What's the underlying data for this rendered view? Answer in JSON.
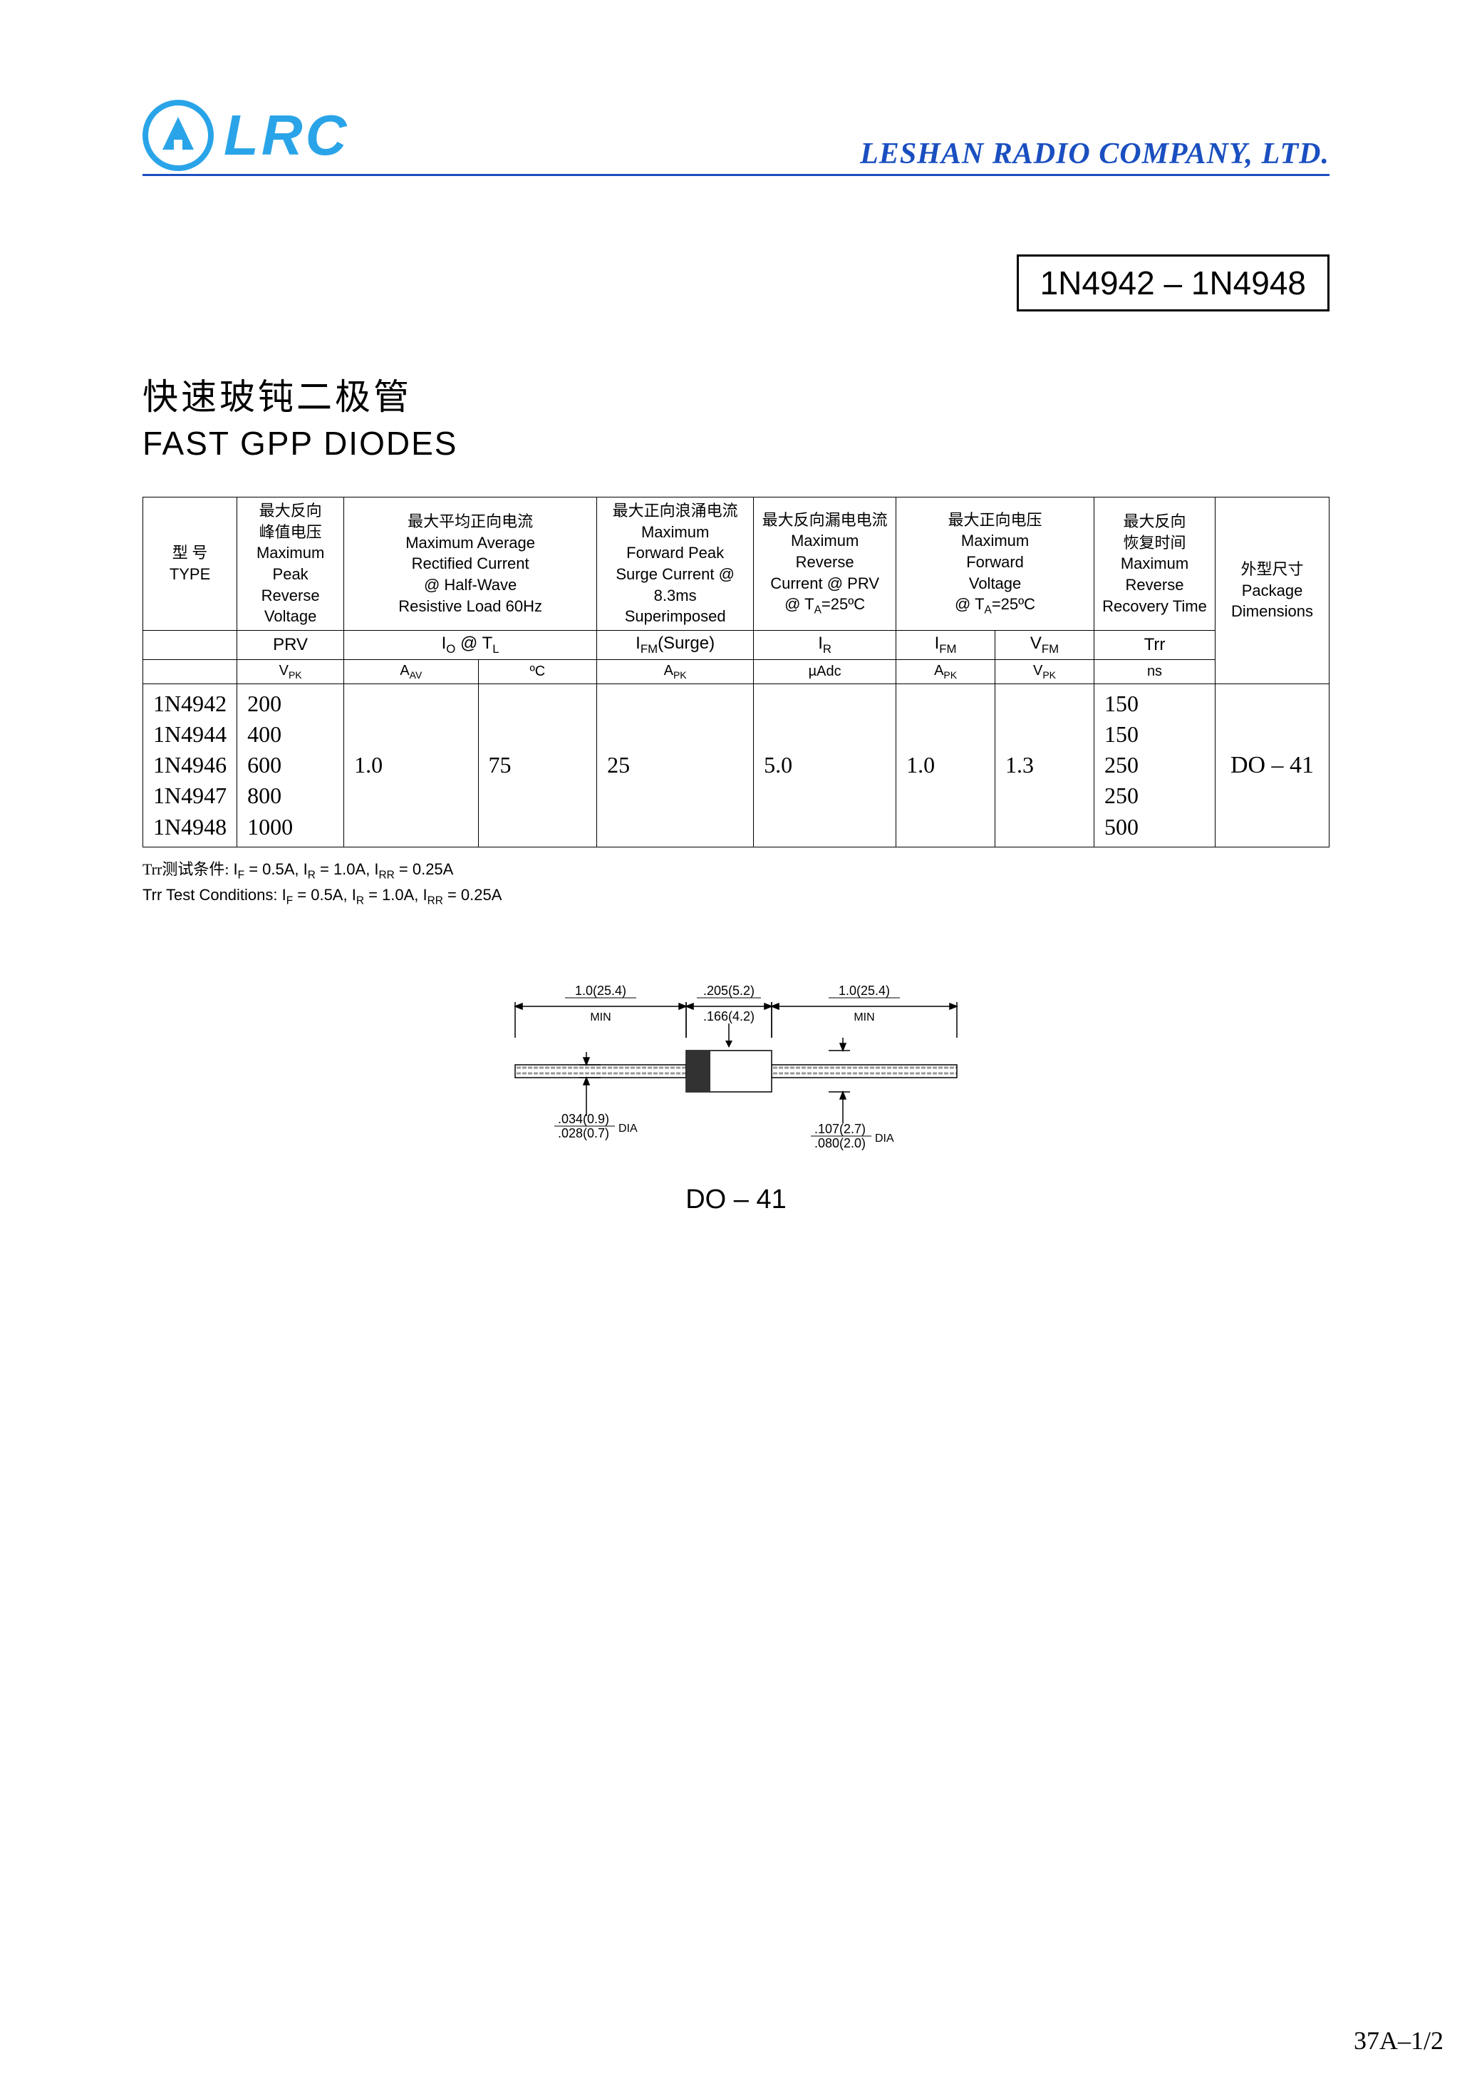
{
  "header": {
    "logo_text": "LRC",
    "company": "LESHAN RADIO COMPANY, LTD.",
    "logo_color": "#2aa4e8",
    "rule_color": "#1a4fc0"
  },
  "part_number_box": "1N4942 – 1N4948",
  "title": {
    "cn": "快速玻钝二极管",
    "en": "FAST GPP DIODES"
  },
  "table": {
    "columns": [
      {
        "cn": "型 号",
        "en": "TYPE"
      },
      {
        "cn": "最大反向\n峰值电压",
        "en": "Maximum\nPeak Reverse\nVoltage"
      },
      {
        "cn": "最大平均正向电流",
        "en": "Maximum Average\nRectified Current\n@ Half-Wave\nResistive Load 60Hz"
      },
      {
        "cn": "最大正向浪涌电流",
        "en": "Maximum\nForward Peak\nSurge Current @\n8.3ms Superimposed"
      },
      {
        "cn": "最大反向漏电电流",
        "en": "Maximum\nReverse\nCurrent @ PRV\n@ T_A=25ºC"
      },
      {
        "cn": "最大正向电压",
        "en": "Maximum\nForward\nVoltage\n@ T_A=25ºC"
      },
      {
        "cn": "最大反向\n恢复时间",
        "en": "Maximum\nReverse\nRecovery Time"
      },
      {
        "cn": "外型尺寸",
        "en": "Package\nDimensions"
      }
    ],
    "symbol_row": [
      "",
      "PRV",
      "I_O @ T_L",
      "I_FM (Surge)",
      "I_R",
      "I_FM",
      "V_FM",
      "Trr",
      ""
    ],
    "unit_row": [
      "",
      "V_PK",
      "A_AV",
      "ºC",
      "A_PK",
      "µAdc",
      "A_PK",
      "V_PK",
      "ns",
      ""
    ],
    "types": [
      "1N4942",
      "1N4944",
      "1N4946",
      "1N4947",
      "1N4948"
    ],
    "prv": [
      "200",
      "400",
      "600",
      "800",
      "1000"
    ],
    "io": "1.0",
    "tl": "75",
    "ifm_surge": "25",
    "ir": "5.0",
    "ifm": "1.0",
    "vfm": "1.3",
    "trr": [
      "150",
      "150",
      "250",
      "250",
      "500"
    ],
    "package": "DO – 41"
  },
  "notes": {
    "cn": "Trr测试条件: I_F = 0.5A, I_R = 1.0A, I_RR = 0.25A",
    "en": "Trr Test Conditions: I_F = 0.5A, I_R = 1.0A, I_RR = 0.25A"
  },
  "diagram": {
    "label": "DO – 41",
    "dims": {
      "lead_len_l": "1.0(25.4)",
      "lead_len_l_sub": "MIN",
      "body_len_top": ".205(5.2)",
      "body_len_bot": ".166(4.2)",
      "lead_len_r": "1.0(25.4)",
      "lead_len_r_sub": "MIN",
      "lead_dia_top": ".034(0.9)",
      "lead_dia_bot": ".028(0.7)",
      "lead_dia_suffix": "DIA",
      "body_dia_top": ".107(2.7)",
      "body_dia_bot": ".080(2.0)",
      "body_dia_suffix": "DIA"
    },
    "colors": {
      "body": "#323232",
      "lead_fill": "#ffffff",
      "lead_hatch": "#9a9a9a",
      "line": "#000000"
    }
  },
  "page_number": "37A–1/2"
}
